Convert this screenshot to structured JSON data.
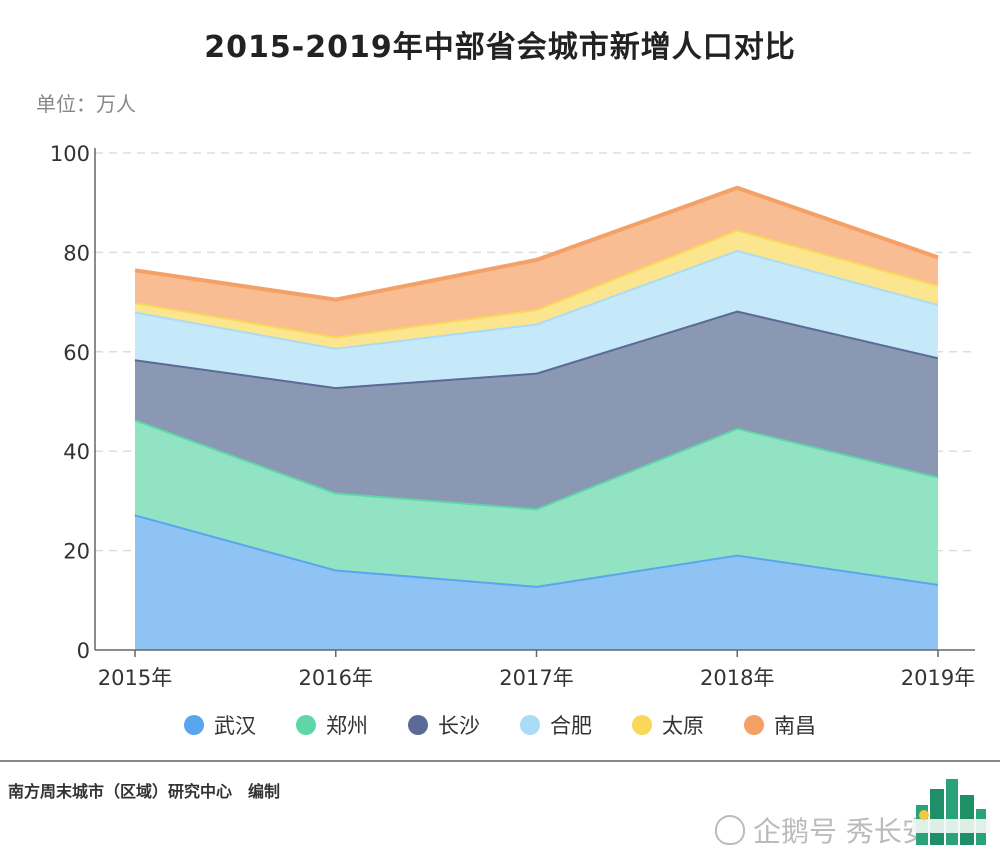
{
  "chart_data": {
    "type": "area",
    "stacked": true,
    "title": "2015-2019年中部省会城市新增人口对比",
    "unit_label": "单位：万人",
    "categories": [
      "2015年",
      "2016年",
      "2017年",
      "2018年",
      "2019年"
    ],
    "ylim": [
      0,
      100
    ],
    "yticks": [
      0,
      20,
      40,
      60,
      80,
      100
    ],
    "grid": true,
    "legend_position": "bottom",
    "series": [
      {
        "name": "武汉",
        "color": "#8ec3f3",
        "line_color": "#5aa6ee",
        "values": [
          27.3,
          16.2,
          12.9,
          19.2,
          13.3
        ]
      },
      {
        "name": "郑州",
        "color": "#92e3c4",
        "line_color": "#5fd6a8",
        "values": [
          19.1,
          15.5,
          15.6,
          25.5,
          21.6
        ]
      },
      {
        "name": "长沙",
        "color": "#8b98b4",
        "line_color": "#5b6a96",
        "values": [
          12.1,
          21.2,
          27.3,
          23.6,
          24.0
        ]
      },
      {
        "name": "合肥",
        "color": "#c6e9fa",
        "line_color": "#aadcf6",
        "values": [
          9.6,
          7.9,
          9.9,
          12.2,
          10.7
        ]
      },
      {
        "name": "太原",
        "color": "#fbe58f",
        "line_color": "#f9d75a",
        "values": [
          1.9,
          2.3,
          2.9,
          4.1,
          3.9
        ]
      },
      {
        "name": "南昌",
        "color": "#f8bd92",
        "line_color": "#f4a066",
        "values": [
          6.4,
          7.4,
          9.9,
          8.4,
          5.5
        ]
      }
    ]
  },
  "footer": {
    "source": "南方周末城市（区域）研究中心　编制",
    "watermark": "企鹅号 秀长安"
  }
}
